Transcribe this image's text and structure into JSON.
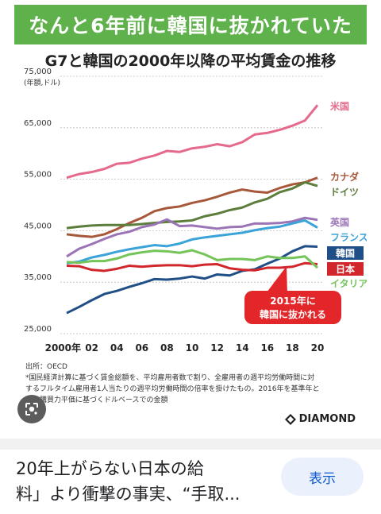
{
  "banner": {
    "title": "なんと6年前に韓国に抜かれていた"
  },
  "chart_data": {
    "type": "line",
    "title": "G7と韓国の2000年以降の平均賃金の推移",
    "ylabel": "(年額,ドル)",
    "xlabel": "",
    "ylim": [
      25000,
      75000
    ],
    "yticks": [
      "25,000",
      "35,000",
      "45,000",
      "55,000",
      "65,000",
      "75,000"
    ],
    "ytick_values": [
      25000,
      35000,
      45000,
      55000,
      65000,
      75000
    ],
    "xticks": [
      "2000年",
      "02",
      "04",
      "06",
      "08",
      "10",
      "12",
      "14",
      "16",
      "18",
      "20"
    ],
    "x": [
      2000,
      2001,
      2002,
      2003,
      2004,
      2005,
      2006,
      2007,
      2008,
      2009,
      2010,
      2011,
      2012,
      2013,
      2014,
      2015,
      2016,
      2017,
      2018,
      2019,
      2020
    ],
    "series": [
      {
        "name": "米国",
        "color": "#e5698a",
        "values": [
          55300,
          56000,
          56400,
          57000,
          58000,
          58200,
          59000,
          59600,
          60500,
          60300,
          61000,
          61300,
          61800,
          61400,
          62200,
          63700,
          64000,
          64600,
          65400,
          66400,
          69400
        ]
      },
      {
        "name": "カナダ",
        "color": "#a7573a",
        "values": [
          44300,
          44000,
          43800,
          44300,
          45300,
          46500,
          47500,
          48800,
          49400,
          49700,
          50400,
          50900,
          51600,
          52400,
          53000,
          52600,
          52400,
          53300,
          54000,
          54400,
          55300
        ]
      },
      {
        "name": "ドイツ",
        "color": "#5c7d3b",
        "values": [
          45500,
          45800,
          46000,
          46100,
          46100,
          46100,
          46300,
          46500,
          46700,
          46800,
          47000,
          47800,
          48300,
          49000,
          49500,
          50500,
          51200,
          52500,
          53200,
          54400,
          53700
        ]
      },
      {
        "name": "英国",
        "color": "#9a74b6",
        "values": [
          40000,
          41500,
          42400,
          43400,
          44300,
          44800,
          45700,
          46200,
          47200,
          45900,
          46000,
          45700,
          45400,
          45700,
          45800,
          46400,
          46400,
          46500,
          46800,
          47500,
          47100
        ]
      },
      {
        "name": "フランス",
        "color": "#3aa4d9",
        "values": [
          38700,
          39000,
          39800,
          40300,
          40900,
          41400,
          41800,
          42200,
          42000,
          42500,
          43300,
          43700,
          44000,
          44300,
          44600,
          45100,
          45500,
          45800,
          46400,
          47000,
          45600
        ]
      },
      {
        "name": "韓国",
        "color": "#1f4f86",
        "values": [
          29000,
          30200,
          31500,
          32700,
          33300,
          34100,
          34800,
          35600,
          35500,
          35700,
          36100,
          35700,
          36500,
          36300,
          37200,
          37500,
          38600,
          39600,
          41000,
          42000,
          41900
        ]
      },
      {
        "name": "日本",
        "color": "#d1262b",
        "values": [
          38200,
          38100,
          37400,
          37200,
          37600,
          38200,
          38000,
          38200,
          38300,
          38300,
          38100,
          38400,
          38500,
          37700,
          37400,
          37300,
          37800,
          37800,
          38000,
          38700,
          38500
        ]
      },
      {
        "name": "イタリア",
        "color": "#74c45a",
        "values": [
          38900,
          38800,
          39100,
          39100,
          39600,
          40400,
          40800,
          41100,
          41000,
          40700,
          41200,
          40400,
          39300,
          39500,
          39500,
          39300,
          40000,
          39700,
          39700,
          40000,
          37800
        ]
      }
    ],
    "annotation": {
      "text_line1": "2015年に",
      "text_line2": "韓国に抜かれる"
    }
  },
  "notes": {
    "source": "出所：OECD",
    "line1": "*国民経済計算に基づく賃金総額を、平均雇用者数で割り、全雇用者の週平均労働時間に対",
    "line2": "するフルタイム雇用者1人当たりの週平均労働時間の倍率を掛けたもの。2016年を基準年と",
    "line3": "し、購買力平価に基づくドルベースでの金額"
  },
  "brand": {
    "name": "DIAMOND"
  },
  "caption": {
    "line1": "20年上がらない日本の給",
    "line2": "料」より衝撃の事実、“手取..."
  },
  "actions": {
    "show_label": "表示"
  },
  "colors": {
    "banner": "#5fb14b",
    "callout": "#e2262a",
    "link": "#0b57d0"
  },
  "icons": {
    "lens": "lens-icon",
    "brand": "diamond-logo-icon"
  }
}
